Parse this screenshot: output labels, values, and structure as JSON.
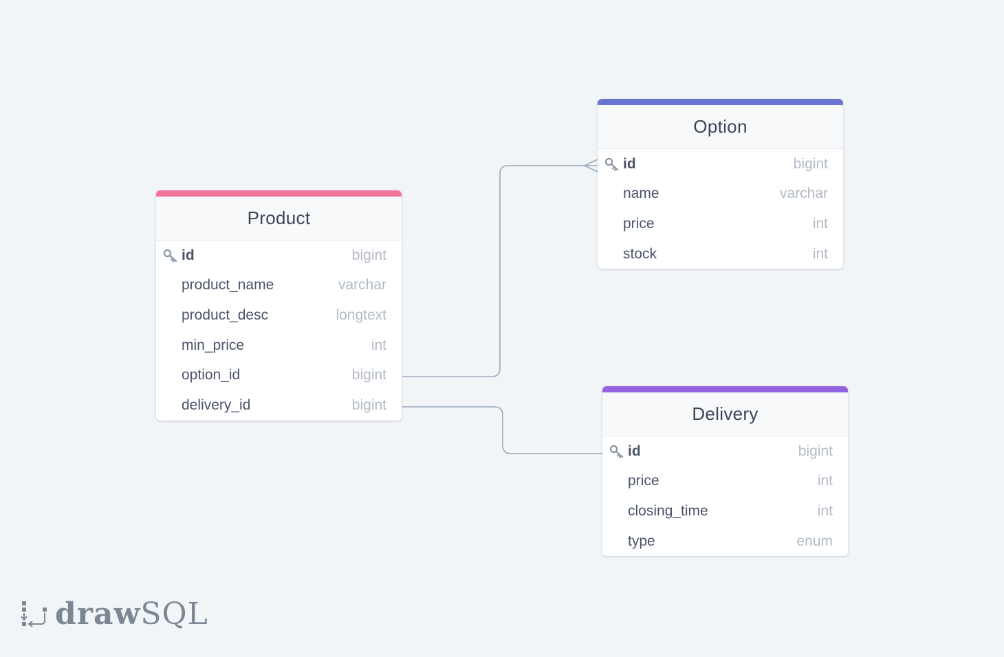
{
  "tables": {
    "product": {
      "name": "Product",
      "accent_color": "#f4739b",
      "fields": [
        {
          "name": "id",
          "type": "bigint",
          "primary_key": true
        },
        {
          "name": "product_name",
          "type": "varchar"
        },
        {
          "name": "product_desc",
          "type": "longtext"
        },
        {
          "name": "min_price",
          "type": "int"
        },
        {
          "name": "option_id",
          "type": "bigint"
        },
        {
          "name": "delivery_id",
          "type": "bigint"
        }
      ]
    },
    "option": {
      "name": "Option",
      "accent_color": "#6875d2",
      "fields": [
        {
          "name": "id",
          "type": "bigint",
          "primary_key": true
        },
        {
          "name": "name",
          "type": "varchar"
        },
        {
          "name": "price",
          "type": "int"
        },
        {
          "name": "stock",
          "type": "int"
        }
      ]
    },
    "delivery": {
      "name": "Delivery",
      "accent_color": "#9563e0",
      "fields": [
        {
          "name": "id",
          "type": "bigint",
          "primary_key": true
        },
        {
          "name": "price",
          "type": "int"
        },
        {
          "name": "closing_time",
          "type": "int"
        },
        {
          "name": "type",
          "type": "enum"
        }
      ]
    }
  },
  "relations": [
    {
      "from": "Product.option_id",
      "to": "Option.id",
      "to_end": "many"
    },
    {
      "from": "Product.delivery_id",
      "to": "Delivery.id",
      "to_end": "one"
    }
  ],
  "logo": {
    "part_bold": "draw",
    "part_light": "SQL"
  },
  "icons": {
    "primary_key": "key-icon",
    "brand": "drawsql-logo-icon"
  },
  "colors": {
    "background": "#f1f5f8",
    "connector": "#9aa9bb"
  }
}
